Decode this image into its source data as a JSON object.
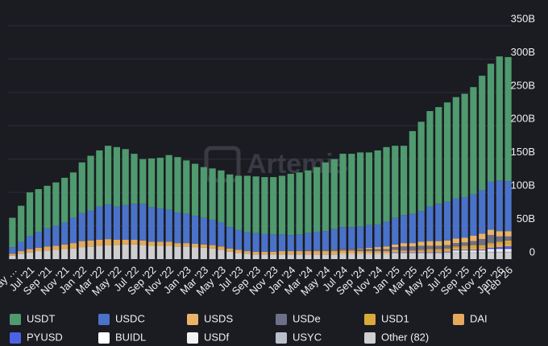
{
  "chart_data": {
    "type": "stacked_bar",
    "watermark": "Artemis",
    "categories": [
      "May …",
      null,
      "Jul '21",
      null,
      "Sep '21",
      null,
      "Nov '21",
      null,
      "Jan '22",
      null,
      "Mar '22",
      null,
      "May '22",
      null,
      "Jul '22",
      null,
      "Sep '22",
      null,
      "Nov '22",
      null,
      "Jan '23",
      null,
      "Mar '23",
      null,
      "May '23",
      null,
      "Jul '23",
      null,
      "Sep '23",
      null,
      "Nov '23",
      null,
      "Jan '24",
      null,
      "Mar '24",
      null,
      "May '24",
      null,
      "Jul '24",
      null,
      "Sep '24",
      null,
      "Nov '24",
      null,
      "Jan '25",
      null,
      "Mar '25",
      null,
      "May '25",
      null,
      "Jul '25",
      null,
      "Sep '25",
      null,
      "Nov '25",
      null,
      "Jan '26",
      "Feb '26"
    ],
    "series": [
      {
        "name": "USDT",
        "color": "#4f9a6e",
        "values": [
          44,
          54,
          65,
          64,
          64,
          65,
          67,
          68,
          76,
          82,
          84,
          88,
          89,
          84,
          75,
          67,
          73,
          76,
          82,
          83,
          80,
          78,
          76,
          77,
          78,
          79,
          81,
          85,
          85,
          85,
          86,
          88,
          92,
          93,
          94,
          97,
          103,
          105,
          110,
          110,
          111,
          109,
          111,
          112,
          108,
          104,
          124,
          134,
          143,
          145,
          149,
          152,
          155,
          161,
          172,
          177,
          186,
          186
        ]
      },
      {
        "name": "USDC",
        "color": "#4a72c9",
        "values": [
          10,
          14,
          20,
          24,
          27,
          30,
          33,
          38,
          42,
          45,
          50,
          52,
          50,
          52,
          54,
          55,
          52,
          50,
          48,
          46,
          44,
          42,
          40,
          38,
          36,
          32,
          30,
          28,
          28,
          27,
          26,
          25,
          24,
          25,
          26,
          27,
          28,
          30,
          32,
          32,
          33,
          34,
          34,
          37,
          40,
          42,
          44,
          46,
          52,
          56,
          58,
          60,
          61,
          62,
          65,
          72,
          76,
          75
        ]
      },
      {
        "name": "USDS",
        "color": "#e9b46a",
        "values": [
          0,
          0,
          0,
          0,
          0,
          0,
          0,
          0,
          0,
          0,
          0,
          0,
          0,
          0,
          0,
          0,
          0,
          0,
          0,
          0,
          0,
          0,
          0,
          0,
          0,
          0,
          0,
          0,
          0,
          0,
          0,
          0,
          0,
          0,
          0,
          0,
          0,
          0,
          0,
          0,
          1,
          2,
          3,
          4,
          4,
          5,
          5,
          6,
          7,
          7,
          7,
          7,
          7,
          8,
          8,
          8,
          8,
          8
        ]
      },
      {
        "name": "USDe",
        "color": "#6e7088",
        "values": [
          0,
          0,
          0,
          0,
          0,
          0,
          0,
          0,
          0,
          0,
          0,
          0,
          0,
          0,
          0,
          0,
          0,
          0,
          0,
          0,
          0,
          0,
          0,
          0,
          0,
          0,
          0,
          0,
          0,
          0,
          0,
          0,
          0,
          0,
          1,
          2,
          2,
          3,
          3,
          3,
          3,
          3,
          3,
          3,
          4,
          6,
          6,
          6,
          5,
          5,
          5,
          5,
          5,
          6,
          9,
          12,
          8,
          6
        ]
      },
      {
        "name": "USD1",
        "color": "#d9a93a",
        "values": [
          0,
          0,
          0,
          0,
          0,
          0,
          0,
          0,
          0,
          0,
          0,
          0,
          0,
          0,
          0,
          0,
          0,
          0,
          0,
          0,
          0,
          0,
          0,
          0,
          0,
          0,
          0,
          0,
          0,
          0,
          0,
          0,
          0,
          0,
          0,
          0,
          0,
          0,
          0,
          0,
          0,
          0,
          0,
          0,
          0,
          0,
          0,
          1,
          2,
          2,
          2,
          2,
          2,
          3,
          3,
          3,
          3,
          4
        ]
      },
      {
        "name": "DAI",
        "color": "#e4a95a",
        "values": [
          3,
          4,
          5,
          5,
          6,
          6,
          7,
          8,
          9,
          9,
          9,
          9,
          8,
          7,
          7,
          7,
          6,
          6,
          6,
          5,
          5,
          5,
          5,
          5,
          5,
          5,
          5,
          4,
          4,
          4,
          4,
          5,
          5,
          5,
          5,
          5,
          5,
          5,
          5,
          5,
          4,
          4,
          4,
          4,
          4,
          3,
          3,
          3,
          3,
          3,
          3,
          3,
          4,
          4,
          4,
          4,
          5,
          5
        ]
      },
      {
        "name": "PYUSD",
        "color": "#4c62e6",
        "values": [
          0,
          0,
          0,
          0,
          0,
          0,
          0,
          0,
          0,
          0,
          0,
          0,
          0,
          0,
          0,
          0,
          0,
          0,
          0,
          0,
          0,
          0,
          0,
          0,
          0,
          0,
          0,
          0,
          0,
          0,
          0,
          0,
          0,
          0,
          0,
          0,
          0,
          0,
          0,
          0,
          0,
          0,
          0,
          0,
          1,
          1,
          1,
          1,
          1,
          1,
          1,
          1,
          1,
          1,
          1,
          2,
          3,
          4
        ]
      },
      {
        "name": "BUIDL",
        "color": "#ffffff",
        "values": [
          0,
          0,
          0,
          0,
          0,
          0,
          0,
          0,
          0,
          0,
          0,
          0,
          0,
          0,
          0,
          0,
          0,
          0,
          0,
          0,
          0,
          0,
          0,
          0,
          0,
          0,
          0,
          0,
          0,
          0,
          0,
          0,
          0,
          0,
          0,
          0,
          0,
          0,
          1,
          1,
          1,
          1,
          1,
          1,
          1,
          1,
          1,
          1,
          1,
          1,
          1,
          2,
          2,
          2,
          2,
          2,
          2,
          2
        ]
      },
      {
        "name": "USDf",
        "color": "#f2f2f2",
        "values": [
          0,
          0,
          0,
          0,
          0,
          0,
          0,
          0,
          0,
          0,
          0,
          0,
          0,
          0,
          0,
          0,
          0,
          0,
          0,
          0,
          0,
          0,
          0,
          0,
          0,
          0,
          0,
          0,
          0,
          0,
          0,
          0,
          0,
          0,
          0,
          0,
          0,
          0,
          0,
          0,
          0,
          0,
          0,
          0,
          0,
          0,
          0,
          0,
          0,
          0,
          0,
          1,
          1,
          1,
          1,
          2,
          2,
          2
        ]
      },
      {
        "name": "USYC",
        "color": "#b8c0cc",
        "values": [
          0,
          0,
          0,
          0,
          0,
          0,
          0,
          0,
          0,
          0,
          0,
          0,
          0,
          0,
          0,
          0,
          0,
          0,
          0,
          0,
          0,
          0,
          0,
          0,
          0,
          0,
          0,
          0,
          0,
          0,
          0,
          0,
          0,
          0,
          0,
          0,
          0,
          0,
          0,
          0,
          0,
          0,
          0,
          0,
          0,
          0,
          0,
          0,
          0,
          0,
          1,
          1,
          1,
          1,
          1,
          1,
          1,
          1
        ]
      },
      {
        "name": "Other (82)",
        "color": "#cfcfcf",
        "values": [
          5,
          8,
          10,
          12,
          13,
          14,
          15,
          16,
          18,
          19,
          20,
          21,
          21,
          22,
          22,
          21,
          20,
          20,
          20,
          19,
          19,
          18,
          17,
          16,
          14,
          11,
          9,
          8,
          7,
          7,
          7,
          7,
          7,
          7,
          7,
          7,
          7,
          7,
          7,
          7,
          7,
          7,
          7,
          7,
          8,
          8,
          8,
          8,
          8,
          8,
          8,
          9,
          9,
          9,
          9,
          10,
          10,
          10
        ]
      }
    ],
    "ylim": [
      0,
      350
    ],
    "yticks": [
      0,
      {
        "value": 50,
        "label": "50B"
      },
      {
        "value": 100,
        "label": "100B"
      },
      {
        "value": 150,
        "label": "150B"
      },
      {
        "value": 200,
        "label": "200B"
      },
      {
        "value": 250,
        "label": "250B"
      },
      {
        "value": 300,
        "label": "300B"
      },
      {
        "value": 350,
        "label": "350B"
      }
    ],
    "grid": true
  }
}
